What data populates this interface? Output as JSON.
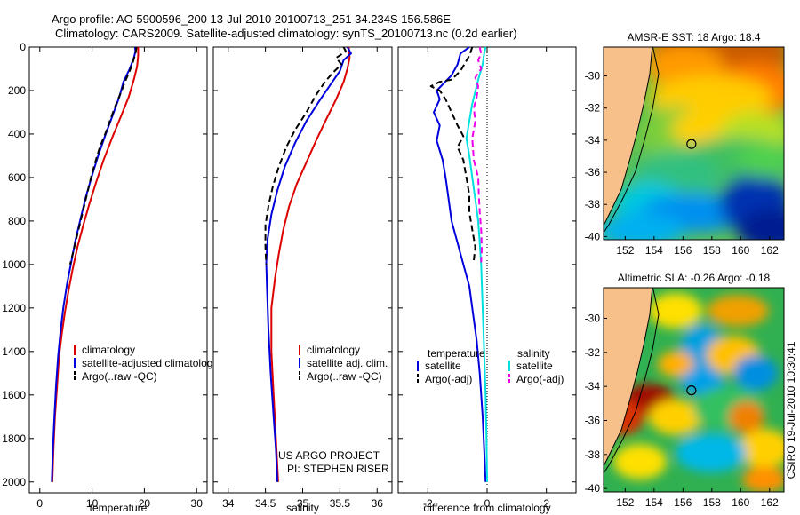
{
  "header": {
    "line1": "Argo profile: AO 5900596_200 13-Jul-2010 20100713_251 34.234S 156.586E",
    "line2": "Climatology: CARS2009. Satellite-adjusted climatology: synTS_20100713.nc (0.2d earlier)"
  },
  "colors": {
    "climatology": "#dd0000",
    "satellite": "#0000dd",
    "argo": "#000000",
    "salinity_sat": "#00e0e0",
    "salinity_argo": "#ee00ee",
    "land": "#f7c08a"
  },
  "chart_data": [
    {
      "type": "line",
      "xlabel": "temperature",
      "xlim": [
        -2,
        32
      ],
      "ylim": [
        2050,
        0
      ],
      "xticks": [
        "0",
        "10",
        "20",
        "30"
      ],
      "yticks": [
        "0",
        "200",
        "400",
        "600",
        "800",
        "1000",
        "1200",
        "1400",
        "1600",
        "1800",
        "2000"
      ],
      "legend": [
        "climatology",
        "satellite-adjusted climatology",
        "Argo(..raw -QC)"
      ],
      "series": [
        {
          "name": "climatology",
          "style": "solid",
          "color": "#dd0000",
          "points": [
            [
              18.8,
              0
            ],
            [
              18.8,
              40
            ],
            [
              18.6,
              90
            ],
            [
              18.0,
              150
            ],
            [
              17.0,
              230
            ],
            [
              15.5,
              320
            ],
            [
              13.8,
              420
            ],
            [
              12.2,
              520
            ],
            [
              10.8,
              620
            ],
            [
              9.5,
              720
            ],
            [
              8.3,
              820
            ],
            [
              7.2,
              920
            ],
            [
              6.3,
              1020
            ],
            [
              5.5,
              1120
            ],
            [
              4.8,
              1220
            ],
            [
              4.2,
              1320
            ],
            [
              3.7,
              1420
            ],
            [
              3.3,
              1560
            ],
            [
              2.9,
              1700
            ],
            [
              2.6,
              1850
            ],
            [
              2.4,
              2000
            ]
          ]
        },
        {
          "name": "satellite-adjusted climatology",
          "style": "solid",
          "color": "#0000dd",
          "points": [
            [
              18.2,
              0
            ],
            [
              18.3,
              20
            ],
            [
              18.0,
              50
            ],
            [
              17.2,
              100
            ],
            [
              16.0,
              160
            ],
            [
              15.2,
              230
            ],
            [
              14.0,
              310
            ],
            [
              12.6,
              400
            ],
            [
              11.3,
              490
            ],
            [
              10.0,
              590
            ],
            [
              8.8,
              690
            ],
            [
              7.8,
              790
            ],
            [
              6.8,
              890
            ],
            [
              6.0,
              990
            ],
            [
              5.2,
              1090
            ],
            [
              4.5,
              1200
            ],
            [
              4.0,
              1300
            ],
            [
              3.5,
              1420
            ],
            [
              3.1,
              1560
            ],
            [
              2.8,
              1700
            ],
            [
              2.5,
              1850
            ],
            [
              2.3,
              2000
            ]
          ]
        },
        {
          "name": "Argo(..raw -QC)",
          "style": "dashed",
          "color": "#000000",
          "points": [
            [
              18.5,
              0
            ],
            [
              18.3,
              30
            ],
            [
              17.8,
              70
            ],
            [
              17.2,
              110
            ],
            [
              16.3,
              160
            ],
            [
              15.5,
              210
            ],
            [
              14.3,
              280
            ],
            [
              13.4,
              340
            ],
            [
              12.5,
              400
            ],
            [
              11.5,
              460
            ],
            [
              10.6,
              530
            ],
            [
              9.8,
              600
            ],
            [
              9.0,
              680
            ],
            [
              8.2,
              760
            ],
            [
              7.4,
              840
            ],
            [
              6.6,
              920
            ],
            [
              5.8,
              1000
            ]
          ]
        }
      ]
    },
    {
      "type": "line",
      "xlabel": "salinity",
      "xlim": [
        33.8,
        36.2
      ],
      "ylim": [
        2050,
        0
      ],
      "xticks": [
        "34",
        "34.5",
        "35",
        "35.5",
        "36"
      ],
      "legend": [
        "climatology",
        "satellite adj. clim.",
        "Argo(..raw -QC)"
      ],
      "annotation": [
        "US ARGO PROJECT",
        "PI: STEPHEN RISER"
      ],
      "series": [
        {
          "name": "climatology",
          "style": "solid",
          "color": "#dd0000",
          "points": [
            [
              35.62,
              0
            ],
            [
              35.63,
              50
            ],
            [
              35.6,
              100
            ],
            [
              35.55,
              160
            ],
            [
              35.45,
              240
            ],
            [
              35.32,
              330
            ],
            [
              35.18,
              430
            ],
            [
              35.05,
              530
            ],
            [
              34.92,
              630
            ],
            [
              34.82,
              730
            ],
            [
              34.74,
              840
            ],
            [
              34.68,
              950
            ],
            [
              34.63,
              1060
            ],
            [
              34.58,
              1200
            ],
            [
              34.58,
              1400
            ],
            [
              34.61,
              1600
            ],
            [
              34.64,
              1800
            ],
            [
              34.67,
              2000
            ]
          ]
        },
        {
          "name": "satellite adj. clim.",
          "style": "solid",
          "color": "#0000dd",
          "points": [
            [
              35.6,
              0
            ],
            [
              35.65,
              30
            ],
            [
              35.55,
              60
            ],
            [
              35.5,
              110
            ],
            [
              35.38,
              170
            ],
            [
              35.22,
              250
            ],
            [
              35.05,
              340
            ],
            [
              34.9,
              440
            ],
            [
              34.76,
              550
            ],
            [
              34.66,
              660
            ],
            [
              34.58,
              770
            ],
            [
              34.53,
              880
            ],
            [
              34.51,
              990
            ],
            [
              34.52,
              1100
            ],
            [
              34.54,
              1300
            ],
            [
              34.57,
              1500
            ],
            [
              34.61,
              1700
            ],
            [
              34.64,
              1850
            ],
            [
              34.66,
              2000
            ]
          ]
        },
        {
          "name": "Argo(..raw -QC)",
          "style": "dashed",
          "color": "#000000",
          "points": [
            [
              35.55,
              0
            ],
            [
              35.58,
              20
            ],
            [
              35.45,
              50
            ],
            [
              35.52,
              80
            ],
            [
              35.4,
              120
            ],
            [
              35.3,
              160
            ],
            [
              35.18,
              220
            ],
            [
              35.05,
              300
            ],
            [
              34.9,
              380
            ],
            [
              34.78,
              460
            ],
            [
              34.68,
              550
            ],
            [
              34.6,
              640
            ],
            [
              34.54,
              730
            ],
            [
              34.5,
              820
            ],
            [
              34.5,
              920
            ],
            [
              34.51,
              1000
            ]
          ]
        }
      ]
    },
    {
      "type": "line",
      "xlabel": "difference from climatology",
      "xlim": [
        -3,
        3
      ],
      "ylim": [
        2050,
        0
      ],
      "xticks": [
        "-2",
        "0",
        "2"
      ],
      "legend_left": [
        "temperature",
        "satellite",
        "Argo(-adj)"
      ],
      "legend_right": [
        "salinity",
        "satellite",
        "Argo(-adj)"
      ],
      "series": [
        {
          "name": "temperature satellite",
          "style": "solid",
          "color": "#0000dd",
          "points": [
            [
              -0.6,
              0
            ],
            [
              -0.9,
              30
            ],
            [
              -1.0,
              80
            ],
            [
              -1.2,
              130
            ],
            [
              -1.7,
              200
            ],
            [
              -1.6,
              240
            ],
            [
              -1.8,
              300
            ],
            [
              -1.6,
              360
            ],
            [
              -1.7,
              430
            ],
            [
              -1.5,
              520
            ],
            [
              -1.4,
              600
            ],
            [
              -1.3,
              700
            ],
            [
              -1.2,
              800
            ],
            [
              -1.0,
              900
            ],
            [
              -0.8,
              1000
            ],
            [
              -0.6,
              1100
            ],
            [
              -0.5,
              1200
            ],
            [
              -0.35,
              1350
            ],
            [
              -0.25,
              1500
            ],
            [
              -0.15,
              1700
            ],
            [
              -0.1,
              1850
            ],
            [
              -0.05,
              2000
            ]
          ]
        },
        {
          "name": "temperature Argo(-adj)",
          "style": "dashed",
          "color": "#000000",
          "points": [
            [
              -0.5,
              0
            ],
            [
              -0.6,
              40
            ],
            [
              -0.9,
              110
            ],
            [
              -1.2,
              150
            ],
            [
              -1.6,
              160
            ],
            [
              -1.9,
              180
            ],
            [
              -1.6,
              200
            ],
            [
              -1.4,
              240
            ],
            [
              -1.2,
              300
            ],
            [
              -1.0,
              360
            ],
            [
              -0.8,
              410
            ],
            [
              -1.0,
              460
            ],
            [
              -0.8,
              520
            ],
            [
              -0.7,
              600
            ],
            [
              -0.6,
              680
            ],
            [
              -0.6,
              760
            ],
            [
              -0.5,
              840
            ],
            [
              -0.4,
              920
            ],
            [
              -0.45,
              980
            ]
          ]
        },
        {
          "name": "salinity satellite",
          "style": "solid",
          "color": "#00e0e0",
          "points": [
            [
              -0.05,
              0
            ],
            [
              -0.1,
              30
            ],
            [
              -0.15,
              80
            ],
            [
              -0.3,
              150
            ],
            [
              -0.5,
              260
            ],
            [
              -0.6,
              340
            ],
            [
              -0.7,
              420
            ],
            [
              -0.6,
              500
            ],
            [
              -0.5,
              600
            ],
            [
              -0.4,
              700
            ],
            [
              -0.3,
              800
            ],
            [
              -0.25,
              900
            ],
            [
              -0.2,
              1000
            ],
            [
              -0.15,
              1200
            ],
            [
              -0.1,
              1400
            ],
            [
              -0.05,
              1600
            ],
            [
              -0.02,
              1800
            ],
            [
              0,
              2000
            ]
          ]
        },
        {
          "name": "salinity Argo(-adj)",
          "style": "dashed",
          "color": "#ee00ee",
          "points": [
            [
              -0.25,
              0
            ],
            [
              -0.2,
              30
            ],
            [
              -0.3,
              60
            ],
            [
              -0.2,
              100
            ],
            [
              -0.4,
              140
            ],
            [
              -0.3,
              180
            ],
            [
              -0.35,
              230
            ],
            [
              -0.45,
              280
            ],
            [
              -0.4,
              340
            ],
            [
              -0.5,
              420
            ],
            [
              -0.45,
              520
            ],
            [
              -0.3,
              600
            ],
            [
              -0.28,
              680
            ],
            [
              -0.25,
              760
            ],
            [
              -0.2,
              840
            ],
            [
              -0.18,
              920
            ],
            [
              -0.2,
              990
            ]
          ]
        }
      ]
    },
    {
      "type": "heatmap",
      "title": "AMSR-E SST: 18 Argo: 18.4",
      "xlim": [
        150.5,
        163
      ],
      "ylim": [
        -40.2,
        -28.2
      ],
      "xticks": [
        "152",
        "154",
        "156",
        "158",
        "160",
        "162"
      ],
      "yticks": [
        "-30",
        "-32",
        "-34",
        "-36",
        "-38",
        "-40"
      ],
      "marker": [
        156.586,
        -34.234
      ]
    },
    {
      "type": "heatmap",
      "title": "Altimetric SLA: -0.26 Argo: -0.18",
      "xlim": [
        150.5,
        163
      ],
      "ylim": [
        -40.2,
        -28.2
      ],
      "xticks": [
        "152",
        "154",
        "156",
        "158",
        "160",
        "162"
      ],
      "yticks": [
        "-30",
        "-32",
        "-34",
        "-36",
        "-38",
        "-40"
      ],
      "marker": [
        156.586,
        -34.234
      ]
    }
  ],
  "side_caption": "CSIRO 19-Jul-2010 10:30:41"
}
